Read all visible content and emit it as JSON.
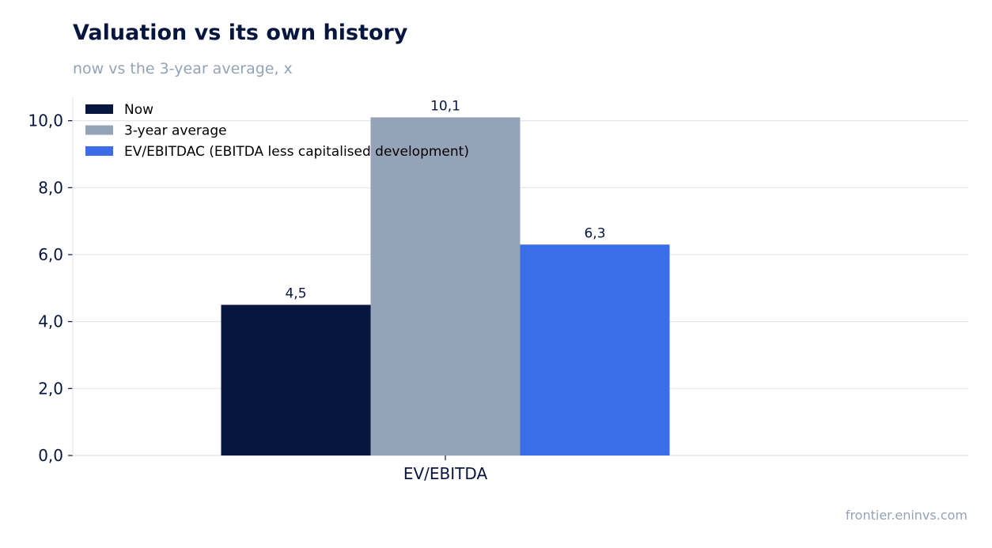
{
  "title": "Valuation vs its own history",
  "subtitle": "now vs the 3-year average, x",
  "source": "frontier.eninvs.com",
  "colors": {
    "title": "#07163f",
    "muted": "#94a3b8",
    "grid": "#e2e6ee",
    "axis": "#07163f"
  },
  "chart_data": {
    "type": "bar",
    "categories": [
      "EV/EBITDA"
    ],
    "series": [
      {
        "name": "Now",
        "values": [
          4.5
        ],
        "label": "4,5",
        "color": "#07163f"
      },
      {
        "name": "3-year average",
        "values": [
          10.1
        ],
        "label": "10,1",
        "color": "#94a3b8"
      },
      {
        "name": "EV/EBITDAC (EBITDA less capitalised development)",
        "values": [
          6.3
        ],
        "label": "6,3",
        "color": "#3b6de8"
      }
    ],
    "ylim": [
      0,
      10.7
    ],
    "yticks": [
      0,
      2,
      4,
      6,
      8,
      10
    ],
    "ytick_labels": [
      "0,0",
      "2,0",
      "4,0",
      "6,0",
      "8,0",
      "10,0"
    ],
    "grid": true,
    "legend_position": "top-left",
    "xlabel": "",
    "ylabel": ""
  }
}
